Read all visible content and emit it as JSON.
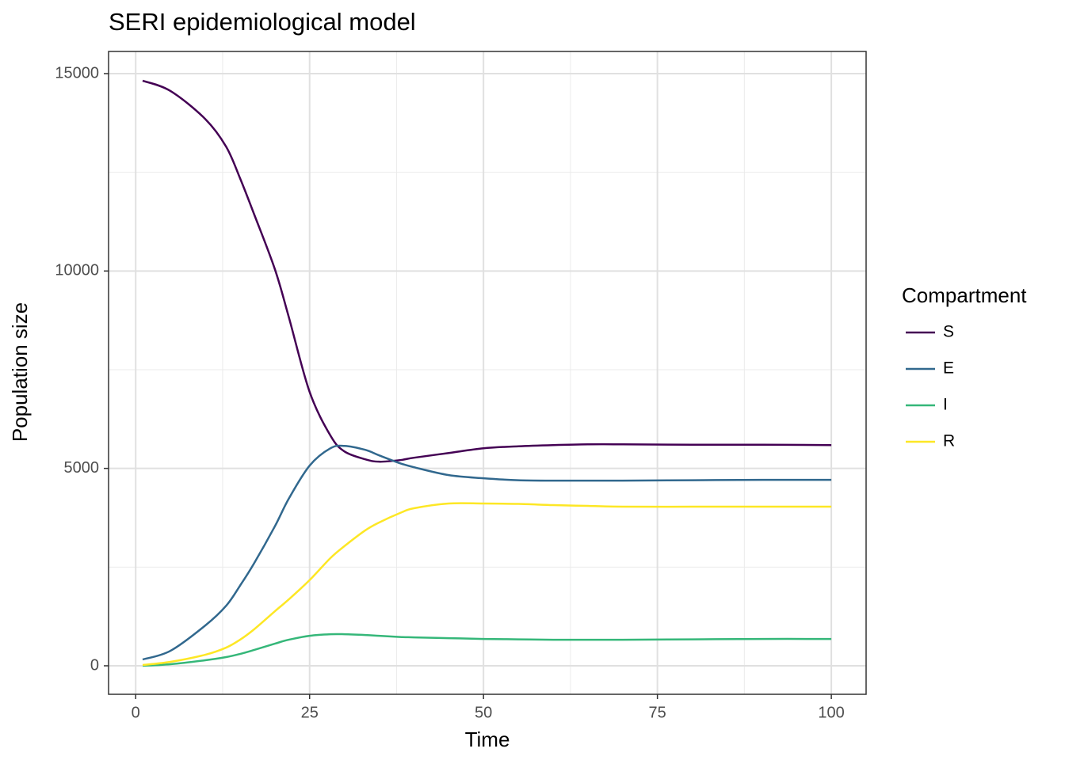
{
  "chart_data": {
    "type": "line",
    "title": "SERI epidemiological model",
    "x_label": "Time",
    "y_label": "Population size",
    "legend_title": "Compartment",
    "legend_position": "right",
    "grid": true,
    "x": [
      1,
      5,
      10,
      13,
      15,
      17,
      20,
      22,
      25,
      28,
      30,
      33,
      35,
      38,
      40,
      45,
      50,
      55,
      60,
      65,
      70,
      80,
      90,
      100
    ],
    "series": [
      {
        "name": "S",
        "color": "#440154",
        "values": [
          14820,
          14560,
          13850,
          13150,
          12350,
          11450,
          10050,
          8840,
          6940,
          5830,
          5430,
          5230,
          5170,
          5210,
          5270,
          5390,
          5510,
          5560,
          5590,
          5610,
          5610,
          5600,
          5600,
          5590
        ]
      },
      {
        "name": "E",
        "color": "#31688e",
        "values": [
          160,
          380,
          1020,
          1520,
          2030,
          2590,
          3530,
          4230,
          5070,
          5510,
          5570,
          5470,
          5330,
          5130,
          5030,
          4830,
          4750,
          4700,
          4690,
          4690,
          4690,
          4700,
          4710,
          4710
        ]
      },
      {
        "name": "I",
        "color": "#35b779",
        "values": [
          0,
          40,
          140,
          220,
          300,
          400,
          560,
          660,
          760,
          800,
          800,
          780,
          760,
          730,
          720,
          700,
          680,
          670,
          660,
          660,
          660,
          670,
          680,
          680
        ]
      },
      {
        "name": "R",
        "color": "#fde725",
        "values": [
          20,
          100,
          280,
          460,
          660,
          920,
          1380,
          1680,
          2170,
          2730,
          3030,
          3430,
          3630,
          3870,
          3990,
          4110,
          4110,
          4100,
          4070,
          4050,
          4030,
          4030,
          4030,
          4030
        ]
      }
    ],
    "xlim": [
      -3.9,
      105
    ],
    "ylim": [
      -722,
      15561
    ],
    "xticks": [
      0,
      25,
      50,
      75,
      100
    ],
    "yticks": [
      0,
      5000,
      10000,
      15000
    ],
    "x_minor_grid": [
      12.5,
      37.5,
      62.5,
      87.5
    ],
    "y_minor_grid": [
      2500,
      7500,
      12500
    ]
  }
}
